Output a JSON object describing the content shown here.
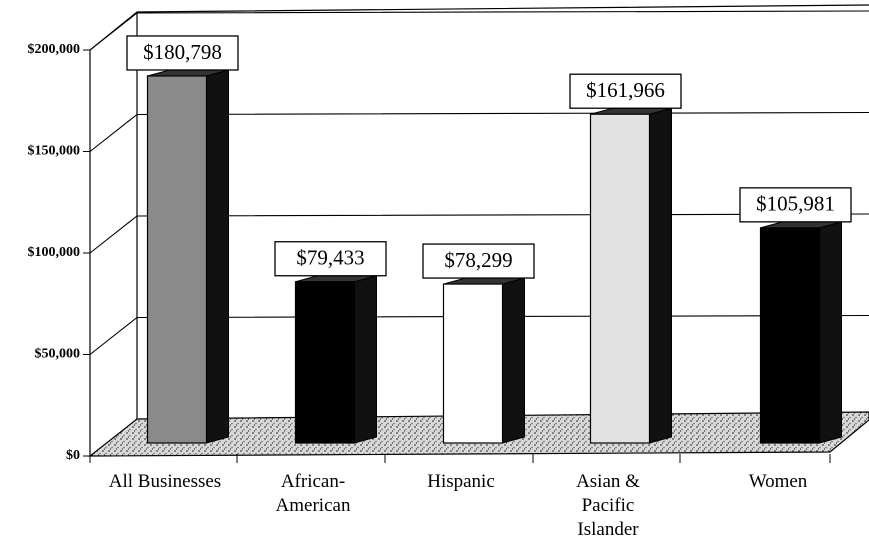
{
  "chart_data": {
    "type": "bar3d",
    "categories": [
      "All Businesses",
      "African-American",
      "Hispanic",
      "Asian & Pacific Islander",
      "Women"
    ],
    "values": [
      180798,
      79433,
      78299,
      161966,
      105981
    ],
    "value_labels": [
      "$180,798",
      "$79,433",
      "$78,299",
      "$161,966",
      "$105,981"
    ],
    "colors": [
      "#8a8a8a",
      "#000000",
      "#ffffff",
      "#e2e2e2",
      "#000000"
    ],
    "ylim": [
      0,
      200000
    ],
    "yticks": [
      {
        "value": 0,
        "label": "$0"
      },
      {
        "value": 50000,
        "label": "$50,000"
      },
      {
        "value": 100000,
        "label": "$100,000"
      },
      {
        "value": 150000,
        "label": "$150,000"
      },
      {
        "value": 200000,
        "label": "$200,000"
      }
    ],
    "grid": true
  }
}
